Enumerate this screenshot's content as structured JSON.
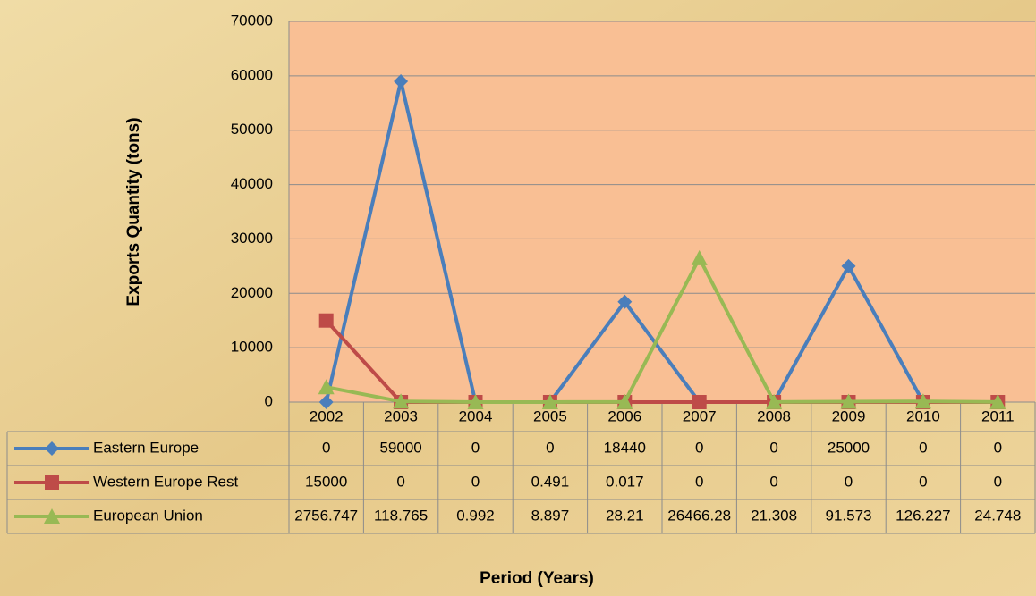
{
  "chart_data": {
    "type": "line",
    "y_label": "Exports Quantity (tons)",
    "x_label": "Period (Years)",
    "categories": [
      "2002",
      "2003",
      "2004",
      "2005",
      "2006",
      "2007",
      "2008",
      "2009",
      "2010",
      "2011"
    ],
    "series": [
      {
        "name": "Eastern Europe",
        "color": "#4a7ebb",
        "marker": "diamond",
        "values": [
          0,
          59000,
          0,
          0,
          18440,
          0,
          0,
          25000,
          0,
          0
        ]
      },
      {
        "name": "Western Europe Rest",
        "color": "#be4b48",
        "marker": "square",
        "values": [
          15000,
          0,
          0,
          0.491,
          0.017,
          0,
          0,
          0,
          0,
          0
        ]
      },
      {
        "name": "European Union",
        "color": "#98b954",
        "marker": "triangle",
        "values": [
          2756.747,
          118.765,
          0.992,
          8.897,
          28.21,
          26466.28,
          21.308,
          91.573,
          126.227,
          24.748
        ]
      }
    ],
    "ylim": [
      0,
      70000
    ],
    "yticks": [
      0,
      10000,
      20000,
      30000,
      40000,
      50000,
      60000,
      70000
    ],
    "grid": true,
    "plot_background": "#f9bf94"
  }
}
